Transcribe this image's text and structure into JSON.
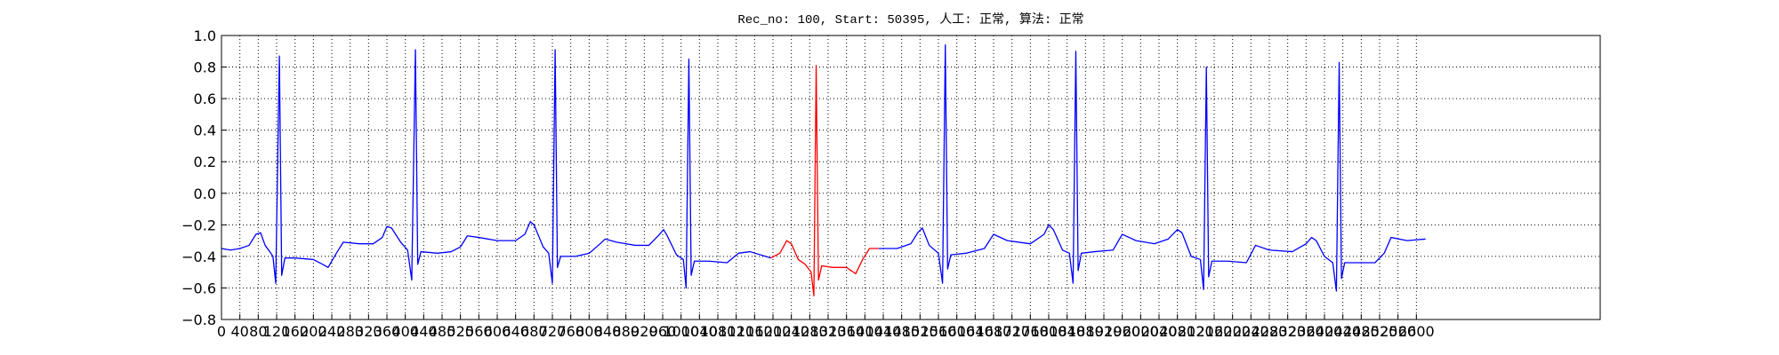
{
  "chart_data": {
    "type": "line",
    "title": "Rec_no: 100, Start: 50395, 人工: 正常, 算法: 正常",
    "xlim": [
      0,
      3000
    ],
    "xticks": [
      0,
      40,
      80,
      120,
      160,
      200,
      240,
      280,
      320,
      360,
      400,
      440,
      480,
      520,
      560,
      600,
      640,
      680,
      720,
      760,
      800,
      840,
      880,
      920,
      960,
      1000,
      1040,
      1080,
      1120,
      1160,
      1200,
      1240,
      1280,
      1320,
      1360,
      1400,
      1440,
      1480,
      1520,
      1560,
      1600,
      1640,
      1680,
      1720,
      1760,
      1800,
      1840,
      1880,
      1920,
      1960,
      2000,
      2040,
      2080,
      2120,
      2160,
      2200,
      2240,
      2280,
      2320,
      2360,
      2400,
      2440,
      2480,
      2520,
      2560,
      2600
    ],
    "ylim": [
      -0.8,
      1.0
    ],
    "yticks": [
      {
        "value": -0.8,
        "label": "−0.8"
      },
      {
        "value": -0.6,
        "label": "−0.6"
      },
      {
        "value": -0.4,
        "label": "−0.4"
      },
      {
        "value": -0.2,
        "label": "−0.2"
      },
      {
        "value": 0,
        "label": "0.0"
      },
      {
        "value": 0.2,
        "label": "0.2"
      },
      {
        "value": 0.4,
        "label": "0.4"
      },
      {
        "value": 0.6,
        "label": "0.6"
      },
      {
        "value": 0.8,
        "label": "0.8"
      },
      {
        "value": 1.0,
        "label": "1.0"
      }
    ],
    "grid": true,
    "series": [
      {
        "color": "#0000ff",
        "x": [
          0,
          20,
          40,
          60,
          75,
          85,
          95,
          105,
          112,
          118,
          126,
          131,
          138,
          160,
          200,
          220,
          232,
          250,
          265,
          300,
          330,
          350,
          360,
          370,
          390,
          405,
          414,
          422,
          427,
          434,
          470,
          500,
          520,
          535,
          560,
          600,
          640,
          660,
          672,
          680,
          700,
          712,
          720,
          726,
          731,
          738,
          770,
          800,
          820,
          835,
          860,
          900,
          930,
          950,
          962,
          970,
          990,
          1005,
          1011,
          1017,
          1022,
          1029,
          1060,
          1100,
          1125,
          1150,
          1195,
          1300,
          1430,
          1470,
          1500,
          1515,
          1525,
          1540,
          1560,
          1569,
          1575,
          1580,
          1587,
          1620,
          1660,
          1680,
          1710,
          1760,
          1790,
          1800,
          1810,
          1830,
          1845,
          1853,
          1859,
          1864,
          1871,
          1900,
          1940,
          1960,
          1990,
          2030,
          2060,
          2080,
          2090,
          2110,
          2130,
          2137,
          2143,
          2148,
          2155,
          2190,
          2230,
          2250,
          2280,
          2330,
          2360,
          2372,
          2382,
          2400,
          2418,
          2426,
          2432,
          2437,
          2444,
          2480,
          2510,
          2530,
          2545,
          2580,
          2620
        ],
        "values": [
          -0.35,
          -0.36,
          -0.35,
          -0.33,
          -0.26,
          -0.25,
          -0.33,
          -0.37,
          -0.4,
          -0.57,
          0.87,
          -0.52,
          -0.41,
          -0.41,
          -0.42,
          -0.45,
          -0.47,
          -0.38,
          -0.31,
          -0.32,
          -0.32,
          -0.28,
          -0.21,
          -0.22,
          -0.31,
          -0.36,
          -0.55,
          0.91,
          -0.45,
          -0.37,
          -0.38,
          -0.37,
          -0.34,
          -0.27,
          -0.28,
          -0.3,
          -0.3,
          -0.26,
          -0.18,
          -0.2,
          -0.34,
          -0.38,
          -0.57,
          0.91,
          -0.47,
          -0.4,
          -0.4,
          -0.38,
          -0.33,
          -0.29,
          -0.31,
          -0.33,
          -0.33,
          -0.27,
          -0.23,
          -0.27,
          -0.39,
          -0.42,
          -0.6,
          0.85,
          -0.52,
          -0.43,
          -0.43,
          -0.44,
          -0.38,
          -0.37,
          -0.41,
          null,
          -0.35,
          -0.35,
          -0.32,
          -0.25,
          -0.22,
          -0.33,
          -0.38,
          -0.57,
          0.94,
          -0.48,
          -0.39,
          -0.38,
          -0.35,
          -0.26,
          -0.3,
          -0.32,
          -0.26,
          -0.2,
          -0.23,
          -0.36,
          -0.38,
          -0.57,
          0.9,
          -0.49,
          -0.38,
          -0.37,
          -0.36,
          -0.26,
          -0.3,
          -0.32,
          -0.29,
          -0.23,
          -0.25,
          -0.4,
          -0.42,
          -0.61,
          0.8,
          -0.53,
          -0.43,
          -0.43,
          -0.44,
          -0.33,
          -0.36,
          -0.37,
          -0.32,
          -0.28,
          -0.3,
          -0.4,
          -0.44,
          -0.62,
          0.83,
          -0.54,
          -0.44,
          -0.44,
          -0.44,
          -0.38,
          -0.28,
          -0.3,
          -0.29
        ]
      },
      {
        "color": "#ff0000",
        "x": [
          1195,
          1215,
          1230,
          1240,
          1255,
          1270,
          1283,
          1289,
          1294,
          1299,
          1306,
          1330,
          1360,
          1380,
          1395,
          1410,
          1430
        ],
        "values": [
          -0.41,
          -0.38,
          -0.3,
          -0.32,
          -0.42,
          -0.45,
          -0.5,
          -0.65,
          0.81,
          -0.55,
          -0.46,
          -0.47,
          -0.47,
          -0.51,
          -0.42,
          -0.35,
          -0.35
        ]
      }
    ]
  }
}
